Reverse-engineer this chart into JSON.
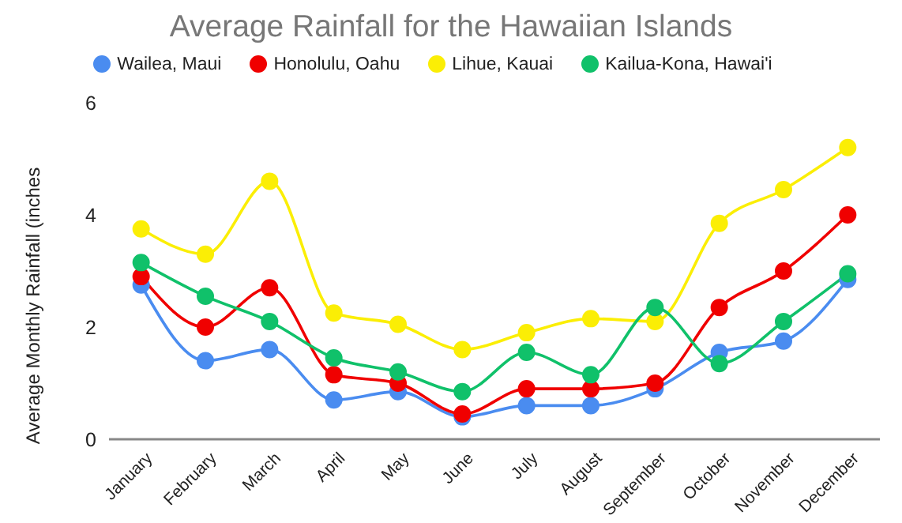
{
  "chart_data": {
    "type": "line",
    "title": "Average Rainfall for the Hawaiian Islands",
    "ylabel": "Average Monthly Rainfall (inches",
    "categories": [
      "January",
      "February",
      "March",
      "April",
      "May",
      "June",
      "July",
      "August",
      "September",
      "October",
      "November",
      "December"
    ],
    "series": [
      {
        "name": "Wailea, Maui",
        "color": "#4a8cf0",
        "values": [
          2.75,
          1.4,
          1.6,
          0.7,
          0.85,
          0.4,
          0.6,
          0.6,
          0.9,
          1.55,
          1.75,
          2.85
        ]
      },
      {
        "name": "Honolulu, Oahu",
        "color": "#f00000",
        "values": [
          2.9,
          2.0,
          2.7,
          1.15,
          1.0,
          0.45,
          0.9,
          0.9,
          1.0,
          2.35,
          3.0,
          4.0
        ]
      },
      {
        "name": "Lihue, Kauai",
        "color": "#fbee05",
        "values": [
          3.75,
          3.3,
          4.6,
          2.25,
          2.05,
          1.6,
          1.9,
          2.15,
          2.1,
          3.85,
          4.45,
          5.2
        ]
      },
      {
        "name": "Kailua-Kona, Hawai'i",
        "color": "#10c16a",
        "values": [
          3.15,
          2.55,
          2.1,
          1.45,
          1.2,
          0.85,
          1.55,
          1.15,
          2.35,
          1.35,
          2.1,
          2.95
        ]
      }
    ],
    "ylim": [
      0,
      6
    ],
    "yticks": [
      0,
      2,
      4,
      6
    ],
    "legend": "top",
    "marker": "circle"
  }
}
